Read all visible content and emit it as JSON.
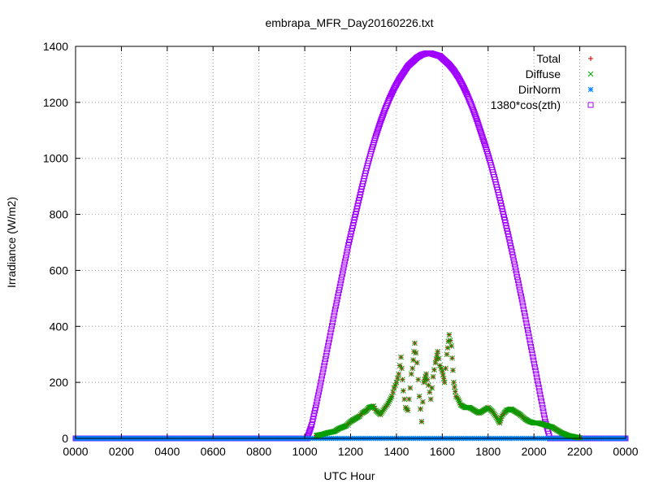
{
  "chart_data": {
    "type": "scatter",
    "title": "embrapa_MFR_Day20160226.txt",
    "xlabel": "UTC Hour",
    "ylabel": "Irradiance (W/m2)",
    "xlim": [
      0,
      24
    ],
    "ylim": [
      0,
      1400
    ],
    "x_ticks": [
      0,
      2,
      4,
      6,
      8,
      10,
      12,
      14,
      16,
      18,
      20,
      22,
      24
    ],
    "x_tick_labels": [
      "0000",
      "0200",
      "0400",
      "0600",
      "0800",
      "1000",
      "1200",
      "1400",
      "1600",
      "1800",
      "2000",
      "2200",
      "0000"
    ],
    "y_ticks": [
      0,
      200,
      400,
      600,
      800,
      1000,
      1200,
      1400
    ],
    "grid": true,
    "legend_position": "top-right",
    "series": [
      {
        "name": "Total",
        "marker": "plus",
        "color": "#cc0000",
        "x": [
          10.5,
          10.8,
          11.0,
          11.3,
          11.5,
          11.8,
          12.0,
          12.2,
          12.4,
          12.5,
          12.7,
          12.8,
          13.0,
          13.1,
          13.3,
          13.5,
          13.6,
          13.8,
          13.9,
          14.0,
          14.05,
          14.1,
          14.15,
          14.2,
          14.3,
          14.4,
          14.5,
          14.6,
          14.65,
          14.7,
          14.8,
          14.9,
          15.0,
          15.1,
          15.2,
          15.3,
          15.4,
          15.5,
          15.6,
          15.7,
          15.8,
          15.9,
          16.0,
          16.1,
          16.2,
          16.3,
          16.4,
          16.5,
          16.6,
          16.7,
          16.8,
          17.0,
          17.2,
          17.4,
          17.6,
          17.8,
          18.0,
          18.2,
          18.4,
          18.5,
          18.6,
          18.7,
          18.8,
          19.0,
          19.2,
          19.4,
          19.6,
          19.8,
          20.0,
          20.2,
          20.4,
          20.6,
          20.8,
          21.0,
          21.2,
          21.5,
          21.8,
          22.0
        ],
        "y": [
          10,
          15,
          20,
          25,
          35,
          45,
          60,
          70,
          80,
          90,
          100,
          110,
          115,
          100,
          85,
          110,
          120,
          150,
          180,
          200,
          215,
          230,
          260,
          290,
          170,
          110,
          100,
          180,
          230,
          250,
          340,
          270,
          150,
          60,
          200,
          230,
          190,
          140,
          220,
          270,
          310,
          260,
          240,
          200,
          300,
          370,
          330,
          200,
          150,
          140,
          120,
          110,
          110,
          100,
          90,
          100,
          110,
          95,
          70,
          55,
          80,
          90,
          100,
          105,
          95,
          85,
          70,
          60,
          55,
          55,
          50,
          45,
          40,
          30,
          20,
          10,
          5,
          2
        ]
      },
      {
        "name": "Diffuse",
        "marker": "cross",
        "color": "#00a000",
        "x": [
          10.5,
          10.8,
          11.0,
          11.3,
          11.5,
          11.8,
          12.0,
          12.2,
          12.4,
          12.5,
          12.7,
          12.8,
          13.0,
          13.1,
          13.3,
          13.5,
          13.6,
          13.8,
          13.9,
          14.0,
          14.05,
          14.1,
          14.15,
          14.2,
          14.3,
          14.4,
          14.5,
          14.6,
          14.65,
          14.7,
          14.8,
          14.9,
          15.0,
          15.1,
          15.2,
          15.3,
          15.4,
          15.5,
          15.6,
          15.7,
          15.8,
          15.9,
          16.0,
          16.1,
          16.2,
          16.3,
          16.4,
          16.5,
          16.6,
          16.7,
          16.8,
          17.0,
          17.2,
          17.4,
          17.6,
          17.8,
          18.0,
          18.2,
          18.4,
          18.5,
          18.6,
          18.7,
          18.8,
          19.0,
          19.2,
          19.4,
          19.6,
          19.8,
          20.0,
          20.2,
          20.4,
          20.6,
          20.8,
          21.0,
          21.2,
          21.5,
          21.8,
          22.0
        ],
        "y": [
          10,
          15,
          20,
          25,
          35,
          45,
          60,
          70,
          80,
          90,
          100,
          110,
          115,
          100,
          85,
          110,
          120,
          150,
          180,
          200,
          215,
          230,
          260,
          290,
          170,
          110,
          100,
          180,
          230,
          250,
          340,
          270,
          150,
          60,
          200,
          230,
          190,
          140,
          220,
          270,
          310,
          260,
          240,
          200,
          300,
          370,
          330,
          200,
          150,
          140,
          120,
          110,
          110,
          100,
          90,
          100,
          110,
          95,
          70,
          55,
          80,
          90,
          100,
          105,
          95,
          85,
          70,
          60,
          55,
          55,
          50,
          45,
          40,
          30,
          20,
          10,
          5,
          2
        ]
      },
      {
        "name": "DirNorm",
        "marker": "star",
        "color": "#0080ff",
        "x": [
          0,
          1,
          2,
          3,
          4,
          5,
          6,
          7,
          8,
          9,
          10,
          10.5,
          11,
          11.5,
          12,
          12.5,
          13,
          13.5,
          14,
          14.5,
          15,
          15.5,
          16,
          16.5,
          17,
          17.5,
          18,
          18.5,
          19,
          19.5,
          20,
          20.5,
          21,
          21.5,
          22,
          22.5,
          23,
          24
        ],
        "y": [
          0,
          0,
          0,
          0,
          0,
          0,
          0,
          0,
          0,
          0,
          0,
          0,
          0,
          0,
          0,
          0,
          0,
          0,
          0,
          0,
          0,
          0,
          0,
          0,
          0,
          0,
          0,
          0,
          0,
          0,
          0,
          0,
          0,
          0,
          0,
          0,
          0,
          0
        ]
      },
      {
        "name": "1380*cos(zth)",
        "marker": "square",
        "color": "#a000ff",
        "x": [
          0,
          1,
          2,
          3,
          4,
          5,
          6,
          7,
          8,
          9,
          10.1,
          10.3,
          10.5,
          10.7,
          10.9,
          11.1,
          11.3,
          11.5,
          11.7,
          11.9,
          12.1,
          12.3,
          12.5,
          12.7,
          12.9,
          13.1,
          13.3,
          13.5,
          13.7,
          13.9,
          14.1,
          14.3,
          14.5,
          14.7,
          14.9,
          15.1,
          15.3,
          15.5,
          15.7,
          15.9,
          16.1,
          16.3,
          16.5,
          16.7,
          16.9,
          17.1,
          17.3,
          17.5,
          17.7,
          17.9,
          18.1,
          18.3,
          18.5,
          18.7,
          18.9,
          19.1,
          19.3,
          19.5,
          19.7,
          19.9,
          20.1,
          20.3,
          20.5,
          20.7,
          20.9,
          21.1,
          21.3,
          21.5,
          21.7,
          21.9,
          22.1,
          22.3,
          23,
          24
        ],
        "y": [
          0,
          0,
          0,
          0,
          0,
          0,
          0,
          0,
          0,
          0,
          0,
          48,
          120,
          200,
          283,
          366,
          450,
          530,
          610,
          690,
          760,
          830,
          900,
          965,
          1025,
          1080,
          1130,
          1175,
          1215,
          1250,
          1280,
          1305,
          1330,
          1345,
          1360,
          1370,
          1375,
          1375,
          1370,
          1365,
          1350,
          1335,
          1315,
          1290,
          1260,
          1225,
          1185,
          1140,
          1090,
          1040,
          985,
          925,
          860,
          790,
          720,
          645,
          565,
          485,
          400,
          315,
          230,
          145,
          60,
          0,
          0,
          0,
          0,
          0,
          0,
          0,
          0,
          0,
          0,
          0
        ]
      }
    ]
  }
}
